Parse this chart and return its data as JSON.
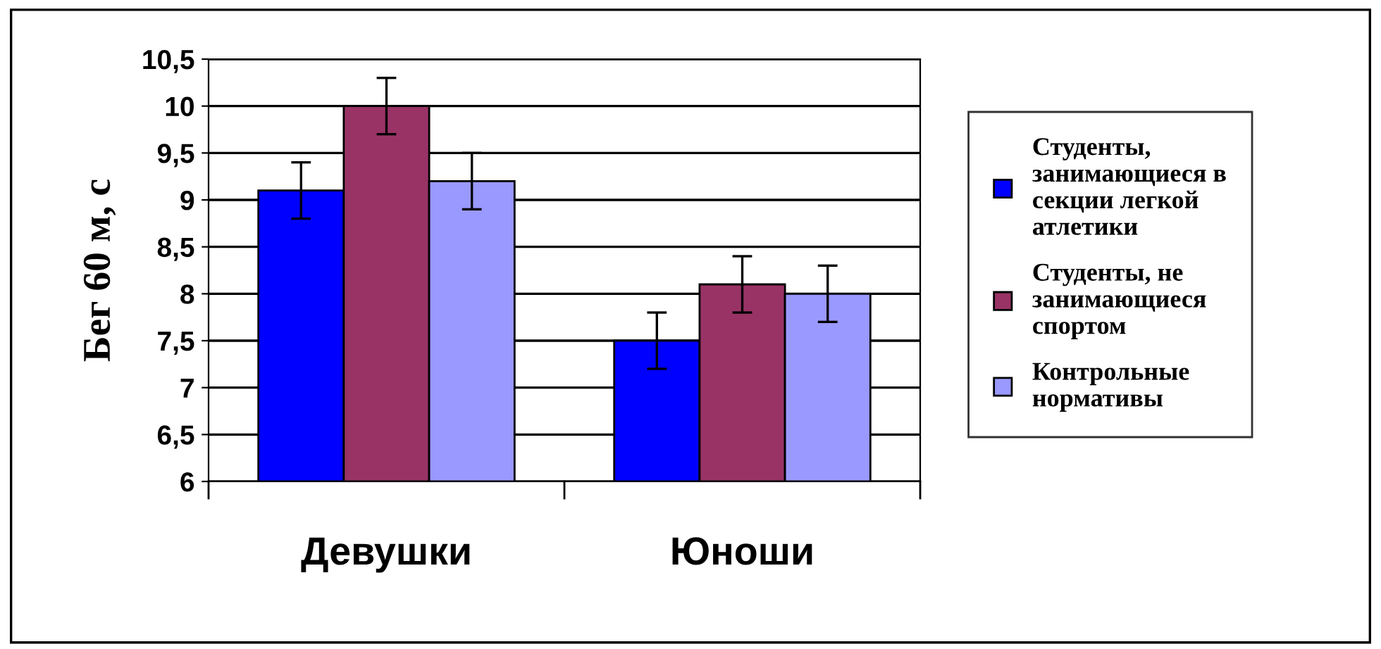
{
  "chart_data": {
    "type": "bar",
    "ylabel": "Бег 60 м, с",
    "categories": [
      "Девушки",
      "Юноши"
    ],
    "series": [
      {
        "name": "Студенты,\nзанимающиеся в\nсекции легкой\nатлетики",
        "color": "#0000ff",
        "values": [
          9.1,
          7.5
        ],
        "errors": [
          0.3,
          0.3
        ]
      },
      {
        "name": "Студенты, не\nзанимающиеся\nспортом",
        "color": "#993366",
        "values": [
          10.0,
          8.1
        ],
        "errors": [
          0.3,
          0.3
        ]
      },
      {
        "name": "Контрольные\nнормативы",
        "color": "#9999ff",
        "values": [
          9.2,
          8.0
        ],
        "errors": [
          0.3,
          0.3
        ]
      }
    ],
    "ylim": [
      6,
      10.5
    ],
    "yticks": [
      6,
      {
        "value": 6.5,
        "label": "6,5"
      },
      7,
      {
        "value": 7.5,
        "label": "7,5"
      },
      8,
      {
        "value": 8.5,
        "label": "8,5"
      },
      9,
      {
        "value": 9.5,
        "label": "9,5"
      },
      10,
      {
        "value": 10.5,
        "label": "10,5"
      }
    ],
    "grid": "y",
    "legend": "right"
  }
}
